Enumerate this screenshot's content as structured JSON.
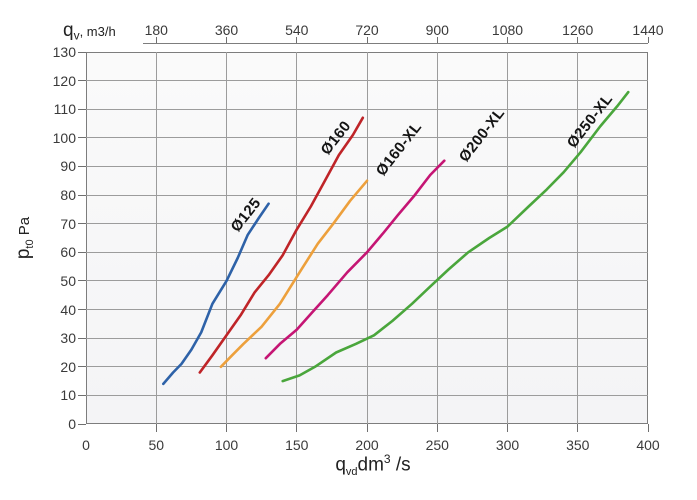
{
  "accent_colors": {
    "grid": "#9c9c9c",
    "frame": "#7d7d7d",
    "text": "#3a3a3a"
  },
  "axes": {
    "top": {
      "sym": "q",
      "sub": "v",
      "rest": ", m3/h"
    },
    "bottom": {
      "sym": "q",
      "sub": "vd",
      "unit": "dm",
      "sup": "3",
      "after": " /s"
    },
    "left": {
      "sym": "p",
      "sub": "t0",
      "unit": " Pa"
    }
  },
  "chart_data": {
    "type": "line",
    "title": "",
    "xlabel": "q_vd, dm3/s",
    "x2label": "q_v, m3/h",
    "ylabel": "p_t0, Pa",
    "xlim": [
      0,
      400
    ],
    "ylim": [
      0,
      130
    ],
    "x_ticks": [
      0,
      50,
      100,
      150,
      200,
      250,
      300,
      350,
      400
    ],
    "x2_ticks": [
      180,
      360,
      540,
      720,
      900,
      1080,
      1260,
      1440
    ],
    "y_ticks": [
      0,
      10,
      20,
      30,
      40,
      50,
      60,
      70,
      80,
      90,
      100,
      110,
      120,
      130
    ],
    "grid": true,
    "legend_position": "labels-on-curves",
    "series": [
      {
        "name": "Ø125",
        "color": "#2e62a8",
        "label_anchor": [
          114,
          73
        ],
        "label_rotation": -52,
        "points": [
          [
            55,
            14
          ],
          [
            62,
            18
          ],
          [
            68,
            21
          ],
          [
            75,
            26
          ],
          [
            82,
            32
          ],
          [
            90,
            42
          ],
          [
            100,
            50
          ],
          [
            108,
            58
          ],
          [
            115,
            66
          ],
          [
            123,
            72
          ],
          [
            130,
            77
          ]
        ]
      },
      {
        "name": "Ø160",
        "color": "#bf2428",
        "label_anchor": [
          178,
          100
        ],
        "label_rotation": -52,
        "points": [
          [
            81,
            18
          ],
          [
            90,
            24
          ],
          [
            100,
            31
          ],
          [
            110,
            38
          ],
          [
            120,
            46
          ],
          [
            130,
            52
          ],
          [
            140,
            59
          ],
          [
            150,
            68
          ],
          [
            160,
            76
          ],
          [
            170,
            85
          ],
          [
            180,
            94
          ],
          [
            190,
            101
          ],
          [
            197,
            107
          ]
        ]
      },
      {
        "name": "Ø160-XL",
        "color": "#eda03c",
        "label_anchor": [
          223,
          96
        ],
        "label_rotation": -52,
        "points": [
          [
            96,
            20
          ],
          [
            104,
            24
          ],
          [
            112,
            28
          ],
          [
            125,
            34
          ],
          [
            138,
            42
          ],
          [
            152,
            53
          ],
          [
            165,
            63
          ],
          [
            176,
            70
          ],
          [
            188,
            78
          ],
          [
            200,
            85
          ]
        ]
      },
      {
        "name": "Ø200-XL",
        "color": "#c51574",
        "label_anchor": [
          282,
          101
        ],
        "label_rotation": -52,
        "points": [
          [
            128,
            23
          ],
          [
            138,
            28
          ],
          [
            150,
            33
          ],
          [
            161,
            39
          ],
          [
            172,
            45
          ],
          [
            186,
            53
          ],
          [
            200,
            60
          ],
          [
            212,
            67
          ],
          [
            222,
            73
          ],
          [
            234,
            80
          ],
          [
            245,
            87
          ],
          [
            255,
            92
          ]
        ]
      },
      {
        "name": "Ø250-XL",
        "color": "#4aa63c",
        "label_anchor": [
          359,
          106
        ],
        "label_rotation": -52,
        "points": [
          [
            140,
            15
          ],
          [
            152,
            17
          ],
          [
            163,
            20
          ],
          [
            178,
            25
          ],
          [
            192,
            28
          ],
          [
            205,
            31
          ],
          [
            218,
            36
          ],
          [
            232,
            42
          ],
          [
            245,
            48
          ],
          [
            258,
            54
          ],
          [
            272,
            60
          ],
          [
            287,
            65
          ],
          [
            300,
            69
          ],
          [
            315,
            76
          ],
          [
            328,
            82
          ],
          [
            340,
            88
          ],
          [
            352,
            95
          ],
          [
            366,
            104
          ],
          [
            378,
            111
          ],
          [
            386,
            116
          ]
        ]
      }
    ]
  }
}
